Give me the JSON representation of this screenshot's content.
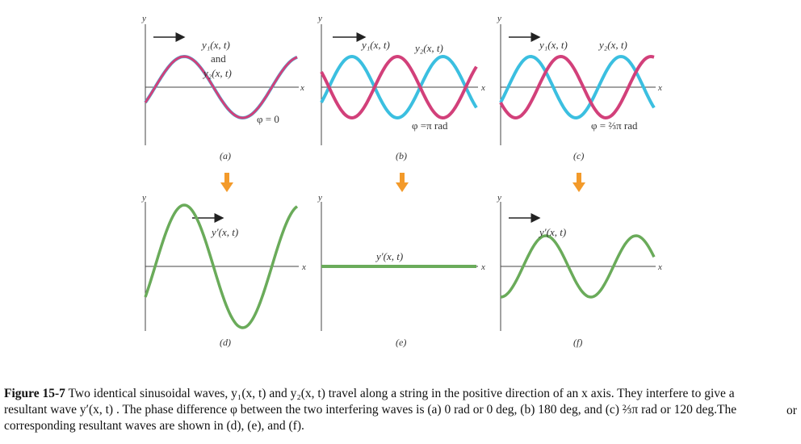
{
  "colors": {
    "wave1": "#3bbfe0",
    "wave2": "#d2407a",
    "resultant": "#6aab5a",
    "arrow_orange": "#f39a2a",
    "axis": "#444444"
  },
  "labels": {
    "axis_y": "y",
    "axis_x": "x",
    "y1": "y₁(x, t)",
    "and": "and",
    "y2": "y₂(x, t)",
    "yprime": "y′(x, t)"
  },
  "panels": [
    {
      "letter": "(a)",
      "phase_label": "φ = 0",
      "phase_rad": 0
    },
    {
      "letter": "(b)",
      "phase_label": "φ =π rad",
      "phase_rad": 3.14159
    },
    {
      "letter": "(c)",
      "phase_label": "φ = ⅔π rad",
      "phase_rad": 2.0944
    },
    {
      "letter": "(d)",
      "resultant_amplitude": 2.0
    },
    {
      "letter": "(e)",
      "resultant_amplitude": 0.0
    },
    {
      "letter": "(f)",
      "resultant_amplitude": 1.0
    }
  ],
  "caption": {
    "title": "Figure 15-7",
    "text": " Two identical sinusoidal waves, y₁(x, t) and y₂(x, t) travel along a string in the positive direction of an x axis. They interfere to give a resultant wave y′(x, t) . The phase difference  φ  between the two interfering waves is (a) 0 rad or 0 deg, (b) 180 deg, and (c) ⅔π rad or 120 deg.The corresponding resultant waves are shown in (d), (e), and (f).",
    "overflow": "or"
  }
}
